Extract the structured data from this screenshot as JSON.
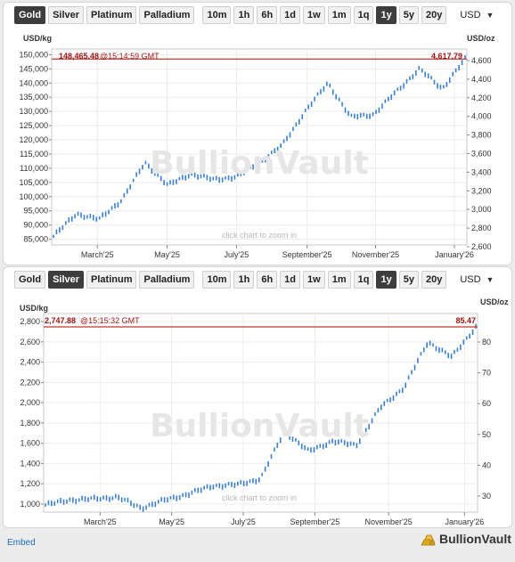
{
  "buttons": {
    "metals": [
      "Gold",
      "Silver",
      "Platinum",
      "Palladium"
    ],
    "ranges": [
      "10m",
      "1h",
      "6h",
      "1d",
      "1w",
      "1m",
      "1q",
      "1y",
      "5y",
      "20y"
    ],
    "currency": "USD"
  },
  "embed_label": "Embed",
  "logo_text": "BullionVault",
  "watermark": "BullionVault",
  "zoom_hint": "click chart to zoom in",
  "colors": {
    "series": "#3a7fd0",
    "price_line": "#c0392b",
    "price_text": "#a31515",
    "active_button": "#3d3d3d"
  },
  "chart_data": [
    {
      "type": "line",
      "metal": "Gold",
      "active_metal": "Gold",
      "active_range": "1y",
      "left_unit": "USD/kg",
      "right_unit": "USD/oz",
      "left_price_label": "148,465.48",
      "right_price_label": "4,617.79",
      "timestamp_label": "@15:14:59 GMT",
      "x_tick_labels": [
        "March'25",
        "May'25",
        "July'25",
        "September'25",
        "November'25",
        "January'26"
      ],
      "y_left_ticks": [
        85000,
        90000,
        95000,
        100000,
        105000,
        110000,
        115000,
        120000,
        125000,
        130000,
        135000,
        140000,
        145000,
        150000
      ],
      "y_left_tick_labels": [
        "85,000",
        "90,000",
        "95,000",
        "100,000",
        "105,000",
        "110,000",
        "115,000",
        "120,000",
        "125,000",
        "130,000",
        "135,000",
        "140,000",
        "145,000",
        "150,000"
      ],
      "y_right_tick_labels": [
        "2,600",
        "2,800",
        "3,000",
        "3,200",
        "3,400",
        "3,600",
        "3,800",
        "4,000",
        "4,200",
        "4,400",
        "4,600"
      ],
      "ylim_left": [
        83000,
        152000
      ],
      "grid": true,
      "x": [
        "Jan'25",
        "Feb'25",
        "Mar'25",
        "Apr'25",
        "Apr'25",
        "May'25",
        "Jun'25",
        "Jul'25",
        "Aug'25",
        "Sep'25",
        "Sep'25",
        "Oct'25",
        "Oct'25",
        "Oct'25",
        "Nov'25",
        "Dec'25",
        "Dec'25",
        "Jan'26",
        "Jan'26"
      ],
      "values": [
        86000,
        94000,
        92000,
        99000,
        112000,
        104000,
        108000,
        106000,
        107000,
        112000,
        118000,
        130000,
        140000,
        128000,
        129000,
        137000,
        145000,
        138000,
        148465
      ]
    },
    {
      "type": "line",
      "metal": "Silver",
      "active_metal": "Silver",
      "active_range": "1y",
      "left_unit": "USD/kg",
      "right_unit": "USD/oz",
      "left_price_label": "2,747.88",
      "right_price_label": "85.47",
      "timestamp_label": "@15:15:32 GMT",
      "x_tick_labels": [
        "March'25",
        "May'25",
        "July'25",
        "September'25",
        "November'25",
        "January'26"
      ],
      "y_left_ticks": [
        1000,
        1200,
        1400,
        1600,
        1800,
        2000,
        2200,
        2400,
        2600,
        2800
      ],
      "y_left_tick_labels": [
        "1,000",
        "1,200",
        "1,400",
        "1,600",
        "1,800",
        "2,000",
        "2,200",
        "2,400",
        "2,600",
        "2,800"
      ],
      "y_right_tick_labels": [
        "30",
        "40",
        "50",
        "60",
        "70",
        "80"
      ],
      "ylim_left": [
        920,
        2880
      ],
      "grid": true,
      "x": [
        "Jan'25",
        "Feb'25",
        "Mar'25",
        "Apr'25",
        "Apr'25",
        "May'25",
        "Jun'25",
        "Jul'25",
        "Aug'25",
        "Sep'25",
        "Oct'25",
        "Oct'25",
        "Nov'25",
        "Nov'25",
        "Dec'25",
        "Dec'25",
        "Jan'26",
        "Jan'26",
        "Jan'26"
      ],
      "values": [
        990,
        1040,
        1050,
        1070,
        960,
        1040,
        1100,
        1180,
        1190,
        1250,
        1720,
        1520,
        1620,
        1580,
        1950,
        2150,
        2600,
        2450,
        2748
      ]
    }
  ]
}
